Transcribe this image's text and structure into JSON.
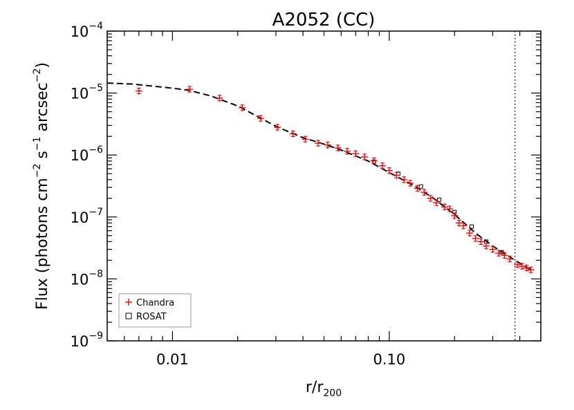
{
  "chart_data": {
    "type": "scatter",
    "title": "A2052 (CC)",
    "xlabel": {
      "base": "r/r",
      "sub": "200"
    },
    "ylabel": {
      "parts": [
        {
          "t": "Flux (photons cm"
        },
        {
          "t": "−2",
          "sup": true
        },
        {
          "t": " s"
        },
        {
          "t": "−1",
          "sup": true
        },
        {
          "t": " arcsec"
        },
        {
          "t": "−2",
          "sup": true
        },
        {
          "t": ")"
        }
      ]
    },
    "xscale": "log",
    "yscale": "log",
    "xlim": [
      0.005,
      0.5
    ],
    "ylim": [
      1e-09,
      0.0001
    ],
    "xticks": [
      {
        "value": 0.01,
        "label": "0.01"
      },
      {
        "value": 0.1,
        "label": "0.10"
      }
    ],
    "yticks": [
      {
        "value": 1e-09,
        "base": "10",
        "exp": "−9"
      },
      {
        "value": 1e-08,
        "base": "10",
        "exp": "−8"
      },
      {
        "value": 1e-07,
        "base": "10",
        "exp": "−7"
      },
      {
        "value": 1e-06,
        "base": "10",
        "exp": "−6"
      },
      {
        "value": 1e-05,
        "base": "10",
        "exp": "−5"
      },
      {
        "value": 0.0001,
        "base": "10",
        "exp": "−4"
      }
    ],
    "vline": {
      "x": 0.38,
      "style": "dotted"
    },
    "legend": {
      "position": "bottom-left",
      "entries": [
        {
          "label": "Chandra",
          "marker": "+",
          "color": "#ff0000"
        },
        {
          "label": "ROSAT",
          "marker": "square",
          "color": "#000000"
        }
      ]
    },
    "model": {
      "style": "dashed",
      "color": "#000000",
      "x": [
        0.005,
        0.0065,
        0.008,
        0.01,
        0.012,
        0.015,
        0.02,
        0.025,
        0.03,
        0.04,
        0.05,
        0.06,
        0.08,
        0.1,
        0.13,
        0.16,
        0.2,
        0.25,
        0.3,
        0.38,
        0.45
      ],
      "y": [
        1.45e-05,
        1.4e-05,
        1.3e-05,
        1.2e-05,
        1.1e-05,
        9e-06,
        6.2e-06,
        4.1e-06,
        2.9e-06,
        1.9e-06,
        1.5e-06,
        1.2e-06,
        8e-07,
        5.2e-07,
        3.2e-07,
        2e-07,
        1.1e-07,
        5.5e-08,
        3.4e-08,
        2e-08,
        1.4e-08
      ]
    },
    "series": [
      {
        "name": "Chandra",
        "color": "#ff0000",
        "marker": "+",
        "x": [
          0.007,
          0.012,
          0.0165,
          0.021,
          0.0255,
          0.0305,
          0.036,
          0.041,
          0.047,
          0.052,
          0.058,
          0.064,
          0.07,
          0.077,
          0.085,
          0.093,
          0.1,
          0.108,
          0.117,
          0.125,
          0.135,
          0.145,
          0.155,
          0.165,
          0.18,
          0.19,
          0.2,
          0.21,
          0.22,
          0.235,
          0.25,
          0.265,
          0.28,
          0.3,
          0.32,
          0.34,
          0.36,
          0.39,
          0.41,
          0.43,
          0.45
        ],
        "y": [
          1.08e-05,
          1.15e-05,
          8.3e-06,
          5.8e-06,
          3.9e-06,
          2.8e-06,
          2.2e-06,
          1.8e-06,
          1.55e-06,
          1.45e-06,
          1.3e-06,
          1.15e-06,
          1.05e-06,
          9.3e-07,
          8.1e-07,
          6.7e-07,
          5.6e-07,
          4.7e-07,
          4e-07,
          3.5e-07,
          2.9e-07,
          2.5e-07,
          2e-07,
          1.7e-07,
          1.45e-07,
          1.35e-07,
          1.05e-07,
          8e-08,
          7.2e-08,
          5.5e-08,
          4.5e-08,
          4e-08,
          3.4e-08,
          3e-08,
          2.6e-08,
          2.4e-08,
          2.1e-08,
          1.7e-08,
          1.6e-08,
          1.5e-08,
          1.4e-08
        ]
      },
      {
        "name": "ROSAT",
        "color": "#000000",
        "marker": "square",
        "x": [
          0.085,
          0.11,
          0.14,
          0.17,
          0.2,
          0.24,
          0.28,
          0.33
        ],
        "y": [
          7.8e-07,
          5e-07,
          3.1e-07,
          1.9e-07,
          1.2e-07,
          7e-08,
          4e-08,
          2.7e-08
        ]
      }
    ]
  }
}
